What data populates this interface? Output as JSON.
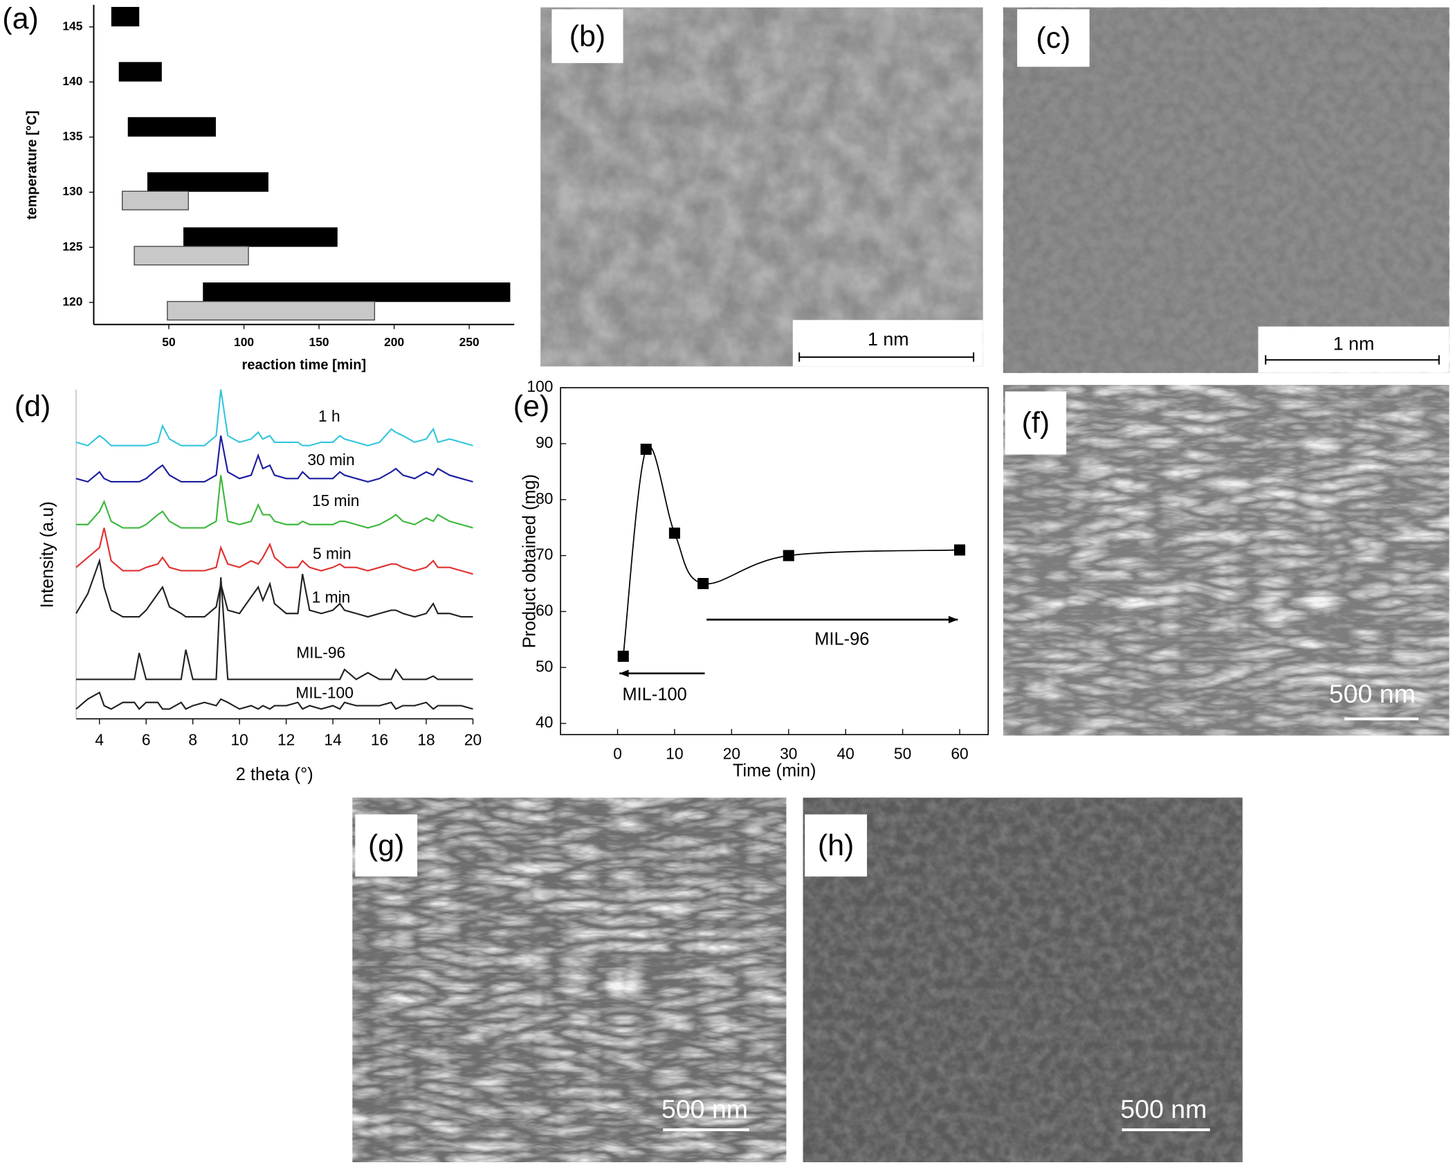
{
  "chart_data": [
    {
      "type": "bar",
      "panel_label": "(a)",
      "orientation": "horizontal",
      "xlabel": "reaction time [min]",
      "ylabel": "temperature [°C]",
      "xlim": [
        0,
        280
      ],
      "ylim": [
        118,
        147
      ],
      "xticks": [
        50,
        100,
        150,
        200,
        250
      ],
      "yticks": [
        120,
        125,
        130,
        135,
        140,
        145
      ],
      "series": [
        {
          "color": "#000000",
          "y": [
            145,
            140,
            135,
            130,
            125,
            120
          ],
          "start": [
            12,
            17,
            23,
            36,
            60,
            73
          ],
          "end": [
            30,
            45,
            81,
            116,
            162,
            277
          ]
        },
        {
          "color": "#c8c8c8",
          "y": [
            130,
            125,
            120
          ],
          "start": [
            19,
            27,
            49
          ],
          "end": [
            63,
            103,
            187
          ]
        }
      ]
    },
    {
      "type": "line",
      "panel_label": "(d)",
      "xlabel": "2 theta (°)",
      "ylabel": "Intensity (a.u)",
      "xlim": [
        3,
        20
      ],
      "ylim": [
        0,
        100
      ],
      "xticks": [
        4,
        6,
        8,
        10,
        12,
        14,
        16,
        18,
        20
      ],
      "x": [
        3,
        3.5,
        4,
        4.2,
        4.5,
        5,
        5.5,
        5.7,
        6,
        6.5,
        6.7,
        7,
        7.5,
        7.7,
        8,
        8.5,
        9,
        9.2,
        9.5,
        10,
        10.5,
        10.8,
        11,
        11.3,
        11.5,
        12,
        12.5,
        12.7,
        13,
        13.5,
        14,
        14.3,
        14.5,
        15,
        15.5,
        16,
        16.5,
        16.7,
        17,
        17.5,
        18,
        18.3,
        18.5,
        19,
        19.5,
        20
      ],
      "series": [
        {
          "name": "1 h",
          "color": "#33c6dd",
          "values": [
            84,
            83,
            86,
            85,
            83,
            83,
            83,
            83,
            83,
            84,
            89,
            85,
            83,
            83,
            83,
            83,
            86,
            100,
            86,
            84,
            85,
            87,
            85,
            86,
            84,
            84,
            84,
            83,
            83,
            84,
            84,
            86,
            85,
            84,
            83,
            84,
            88,
            87,
            86,
            84,
            85,
            88,
            84,
            85,
            84,
            83
          ]
        },
        {
          "name": "30 min",
          "color": "#1c1ca0",
          "values": [
            73,
            72,
            75,
            73,
            72,
            72,
            72,
            72,
            73,
            76,
            77,
            74,
            72,
            72,
            72,
            72,
            74,
            86,
            75,
            73,
            74,
            80,
            76,
            77,
            74,
            73,
            73,
            75,
            73,
            73,
            73,
            75,
            74,
            73,
            72,
            73,
            75,
            76,
            74,
            73,
            75,
            74,
            76,
            74,
            73,
            72
          ]
        },
        {
          "name": "15 min",
          "color": "#3cb83c",
          "values": [
            59,
            59,
            63,
            66,
            60,
            58,
            58,
            58,
            59,
            62,
            63,
            60,
            58,
            58,
            58,
            58,
            60,
            74,
            60,
            59,
            60,
            65,
            62,
            62,
            60,
            59,
            59,
            60,
            59,
            59,
            59,
            60,
            60,
            59,
            58,
            59,
            61,
            62,
            60,
            59,
            61,
            60,
            62,
            60,
            59,
            58
          ]
        },
        {
          "name": "5 min",
          "color": "#e03030",
          "values": [
            46,
            49,
            52,
            58,
            48,
            45,
            45,
            45,
            46,
            47,
            49,
            46,
            45,
            45,
            45,
            45,
            46,
            52,
            47,
            46,
            48,
            47,
            49,
            53,
            49,
            46,
            46,
            48,
            46,
            45,
            46,
            47,
            46,
            46,
            45,
            46,
            47,
            47,
            46,
            45,
            46,
            48,
            46,
            46,
            45,
            44
          ]
        },
        {
          "name": "1 min",
          "color": "#222222",
          "values": [
            32,
            38,
            48,
            40,
            33,
            31,
            31,
            31,
            33,
            38,
            40,
            34,
            32,
            31,
            31,
            31,
            34,
            41,
            33,
            32,
            37,
            40,
            36,
            41,
            35,
            32,
            32,
            44,
            33,
            32,
            33,
            35,
            33,
            32,
            31,
            32,
            33,
            33,
            32,
            31,
            32,
            35,
            32,
            32,
            31,
            31
          ]
        },
        {
          "name": "MIL-96",
          "color": "#222222",
          "values": [
            12,
            12,
            12,
            12,
            12,
            12,
            12,
            20,
            12,
            12,
            12,
            12,
            12,
            21,
            12,
            12,
            12,
            43,
            12,
            12,
            12,
            12,
            12,
            12,
            12,
            12,
            12,
            12,
            12,
            12,
            12,
            12,
            15,
            12,
            14,
            12,
            12,
            15,
            12,
            12,
            12,
            13,
            12,
            12,
            12,
            12
          ]
        },
        {
          "name": "MIL-100",
          "color": "#222222",
          "values": [
            3,
            6,
            8,
            4,
            3,
            5,
            5,
            3,
            5,
            5,
            3,
            3,
            5,
            3,
            4,
            5,
            4,
            6,
            5,
            3,
            4,
            3,
            4,
            3,
            4,
            4,
            5,
            3,
            4,
            3,
            4,
            3,
            5,
            4,
            4,
            4,
            5,
            3,
            4,
            4,
            5,
            3,
            4,
            4,
            4,
            3
          ]
        }
      ]
    },
    {
      "type": "scatter",
      "panel_label": "(e)",
      "xlabel": "Time (min)",
      "ylabel": "Product obtained (mg)",
      "x": [
        1,
        5,
        10,
        15,
        30,
        60
      ],
      "values": [
        52,
        89,
        74,
        65,
        70,
        71
      ],
      "color": "#000000",
      "xlim": [
        -10,
        65
      ],
      "ylim": [
        38,
        100
      ],
      "xticks": [
        0,
        10,
        20,
        30,
        40,
        50,
        60
      ],
      "yticks": [
        40,
        50,
        60,
        70,
        80,
        90,
        100
      ],
      "annotations": [
        "MIL-100",
        "MIL-96"
      ]
    }
  ],
  "images": [
    {
      "label": "(b)",
      "scale_bar": "1 nm"
    },
    {
      "label": "(c)",
      "scale_bar": "1 nm"
    },
    {
      "label": "(f)",
      "scale_bar": "500 nm"
    },
    {
      "label": "(g)",
      "scale_bar": "500 nm"
    },
    {
      "label": "(h)",
      "scale_bar": "500 nm"
    }
  ]
}
